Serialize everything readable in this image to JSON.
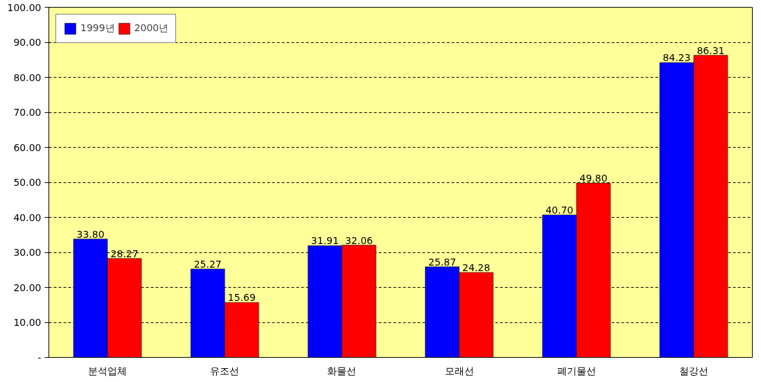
{
  "chart_data": {
    "type": "bar",
    "categories": [
      "분석업체",
      "유조선",
      "화물선",
      "모래선",
      "폐기물선",
      "철강선"
    ],
    "series": [
      {
        "name": "1999년",
        "color": "#0000ff",
        "values": [
          33.8,
          25.27,
          31.91,
          25.87,
          40.7,
          84.23
        ],
        "value_labels": [
          "33.80",
          "25.27",
          "31.91",
          "25.87",
          "40.70",
          "84.23"
        ]
      },
      {
        "name": "2000년",
        "color": "#ff0000",
        "values": [
          28.27,
          15.69,
          32.06,
          24.28,
          49.8,
          86.31
        ],
        "value_labels": [
          "28.27",
          "15.69",
          "32.06",
          "24.28",
          "49.80",
          "86.31"
        ]
      }
    ],
    "ylim": [
      0,
      100
    ],
    "yticks": [
      {
        "value": 0,
        "label": "-"
      },
      {
        "value": 10,
        "label": "10.00"
      },
      {
        "value": 20,
        "label": "20.00"
      },
      {
        "value": 30,
        "label": "30.00"
      },
      {
        "value": 40,
        "label": "40.00"
      },
      {
        "value": 50,
        "label": "50.00"
      },
      {
        "value": 60,
        "label": "60.00"
      },
      {
        "value": 70,
        "label": "70.00"
      },
      {
        "value": 80,
        "label": "80.00"
      },
      {
        "value": 90,
        "label": "90.00"
      },
      {
        "value": 100,
        "label": "100.00"
      }
    ],
    "grid": "y",
    "legend": "top left"
  }
}
